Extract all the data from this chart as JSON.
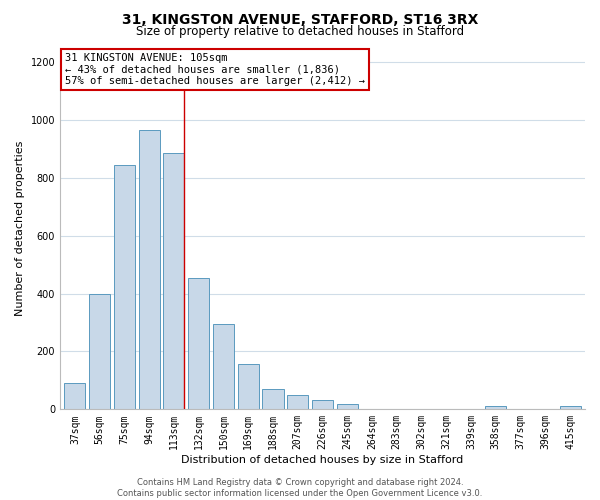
{
  "title_line1": "31, KINGSTON AVENUE, STAFFORD, ST16 3RX",
  "title_line2": "Size of property relative to detached houses in Stafford",
  "xlabel": "Distribution of detached houses by size in Stafford",
  "ylabel": "Number of detached properties",
  "categories": [
    "37sqm",
    "56sqm",
    "75sqm",
    "94sqm",
    "113sqm",
    "132sqm",
    "150sqm",
    "169sqm",
    "188sqm",
    "207sqm",
    "226sqm",
    "245sqm",
    "264sqm",
    "283sqm",
    "302sqm",
    "321sqm",
    "339sqm",
    "358sqm",
    "377sqm",
    "396sqm",
    "415sqm"
  ],
  "values": [
    90,
    400,
    845,
    965,
    885,
    455,
    295,
    158,
    70,
    50,
    33,
    20,
    0,
    0,
    0,
    0,
    0,
    10,
    0,
    0,
    10
  ],
  "highlight_index": 4,
  "bar_color": "#c8d8e8",
  "bar_edge_color": "#5a9abf",
  "annotation_text": "31 KINGSTON AVENUE: 105sqm\n← 43% of detached houses are smaller (1,836)\n57% of semi-detached houses are larger (2,412) →",
  "annotation_box_color": "#ffffff",
  "annotation_border_color": "#cc0000",
  "vline_color": "#cc0000",
  "ylim": [
    0,
    1250
  ],
  "yticks": [
    0,
    200,
    400,
    600,
    800,
    1000,
    1200
  ],
  "footer_line1": "Contains HM Land Registry data © Crown copyright and database right 2024.",
  "footer_line2": "Contains public sector information licensed under the Open Government Licence v3.0.",
  "bg_color": "#ffffff",
  "grid_color": "#d0dde8",
  "title_fontsize": 10,
  "subtitle_fontsize": 8.5,
  "tick_fontsize": 7,
  "axis_label_fontsize": 8,
  "annotation_fontsize": 7.5,
  "footer_fontsize": 6
}
